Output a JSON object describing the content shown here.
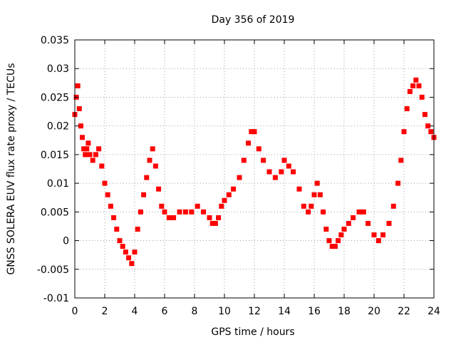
{
  "chart_data": {
    "type": "scatter",
    "title": "Day 356 of 2019",
    "xlabel": "GPS time / hours",
    "ylabel": "GNSS SOLERA EUV flux rate proxy / TECUs",
    "xlim": [
      0,
      24
    ],
    "ylim": [
      -0.01,
      0.035
    ],
    "x_ticks": [
      "0",
      "2",
      "4",
      "6",
      "8",
      "10",
      "12",
      "14",
      "16",
      "18",
      "20",
      "22",
      "24"
    ],
    "y_ticks": [
      "-0.01",
      "-0.005",
      "0",
      "0.005",
      "0.01",
      "0.015",
      "0.02",
      "0.025",
      "0.03",
      "0.035"
    ],
    "grid": true,
    "marker_color": "#ff0000",
    "series": [
      {
        "x": [
          0,
          0.1,
          0.2,
          0.3,
          0.4,
          0.5,
          0.6,
          0.7,
          0.8,
          0.9,
          1.0,
          1.2,
          1.4,
          1.6,
          1.8,
          2.0,
          2.2,
          2.4,
          2.6,
          2.8,
          3.0,
          3.2,
          3.4,
          3.6,
          3.8,
          4.0,
          4.2,
          4.4,
          4.6,
          4.8,
          5.0,
          5.2,
          5.4,
          5.6,
          5.8,
          6.0,
          6.3,
          6.6,
          7.0,
          7.4,
          7.8,
          8.2,
          8.6,
          9.0,
          9.2,
          9.4,
          9.6,
          9.8,
          10.0,
          10.3,
          10.6,
          11.0,
          11.3,
          11.6,
          11.8,
          12.0,
          12.3,
          12.6,
          13.0,
          13.4,
          13.8,
          14.0,
          14.3,
          14.6,
          15.0,
          15.3,
          15.6,
          15.8,
          16.0,
          16.2,
          16.4,
          16.6,
          16.8,
          17.0,
          17.2,
          17.4,
          17.6,
          17.8,
          18.0,
          18.3,
          18.6,
          19.0,
          19.3,
          19.6,
          20.0,
          20.3,
          20.6,
          21.0,
          21.3,
          21.6,
          21.8,
          22.0,
          22.2,
          22.4,
          22.6,
          22.8,
          23.0,
          23.2,
          23.4,
          23.6,
          23.8,
          24.0
        ],
        "y": [
          0.022,
          0.025,
          0.027,
          0.023,
          0.02,
          0.018,
          0.016,
          0.015,
          0.016,
          0.017,
          0.015,
          0.014,
          0.015,
          0.016,
          0.013,
          0.01,
          0.008,
          0.006,
          0.004,
          0.002,
          0.0,
          -0.001,
          -0.002,
          -0.003,
          -0.004,
          -0.002,
          0.002,
          0.005,
          0.008,
          0.011,
          0.014,
          0.016,
          0.013,
          0.009,
          0.006,
          0.005,
          0.004,
          0.004,
          0.005,
          0.005,
          0.005,
          0.006,
          0.005,
          0.004,
          0.003,
          0.003,
          0.004,
          0.006,
          0.007,
          0.008,
          0.009,
          0.011,
          0.014,
          0.017,
          0.019,
          0.019,
          0.016,
          0.014,
          0.012,
          0.011,
          0.012,
          0.014,
          0.013,
          0.012,
          0.009,
          0.006,
          0.005,
          0.006,
          0.008,
          0.01,
          0.008,
          0.005,
          0.002,
          0.0,
          -0.001,
          -0.001,
          0.0,
          0.001,
          0.002,
          0.003,
          0.004,
          0.005,
          0.005,
          0.003,
          0.001,
          0.0,
          0.001,
          0.003,
          0.006,
          0.01,
          0.014,
          0.019,
          0.023,
          0.026,
          0.027,
          0.028,
          0.027,
          0.025,
          0.022,
          0.02,
          0.019,
          0.018
        ]
      }
    ]
  }
}
